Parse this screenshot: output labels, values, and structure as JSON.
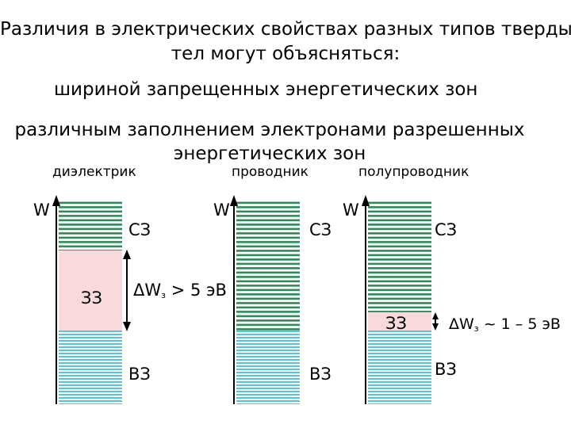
{
  "title_line1": "Различия в электрических свойствах разных типов твердых",
  "title_line2": "тел могут объясняться:",
  "point1": "шириной запрещенных энергетических зон",
  "point2_line1": "различным заполнением электронами разрешенных",
  "point2_line2": "энергетических зон",
  "colors": {
    "cb": "#2e8b57",
    "vb": "#2fb5d8",
    "gap": "#f9dada",
    "axis": "#000000"
  },
  "dielectric": {
    "caption": "диэлектрик",
    "axis": "W",
    "cb": "СЗ",
    "gap": "ЗЗ",
    "vb": "ВЗ",
    "gap_symbol": "ΔW",
    "gap_sub": "з",
    "gap_value": "> 5 эВ"
  },
  "conductor": {
    "caption": "проводник",
    "axis": "W",
    "cb": "СЗ",
    "vb": "ВЗ"
  },
  "semiconductor": {
    "caption": "полупроводник",
    "axis": "W",
    "cb": "СЗ",
    "gap": "ЗЗ",
    "vb": "ВЗ",
    "gap_symbol": "ΔW",
    "gap_sub": "з",
    "gap_value": "~ 1 – 5 эВ"
  }
}
